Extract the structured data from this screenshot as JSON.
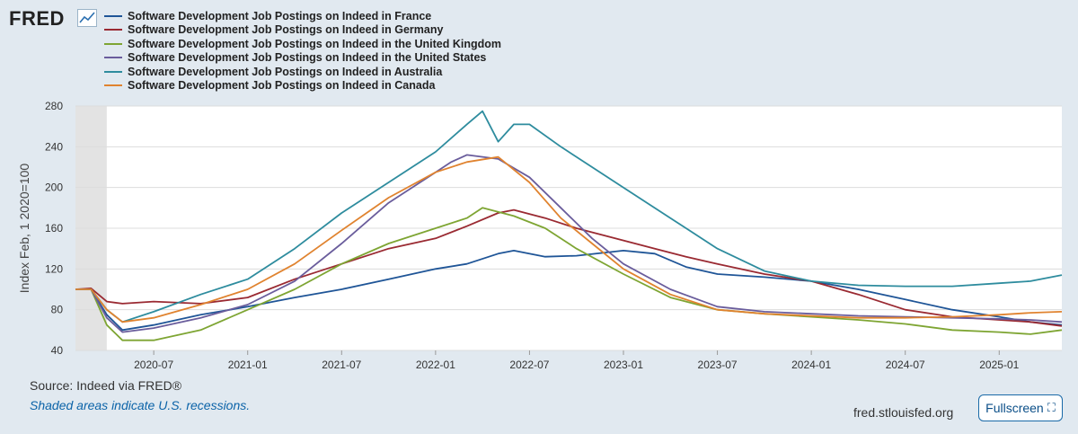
{
  "brand": {
    "logo_text": "FRED"
  },
  "footer": {
    "source": "Source: Indeed via FRED®",
    "note": "Shaded areas indicate U.S. recessions.",
    "site": "fred.stlouisfed.org",
    "fullscreen_label": "Fullscreen",
    "fullscreen_icon": "expand-icon"
  },
  "chart_data": {
    "type": "line",
    "title": "",
    "xlabel": "",
    "ylabel": "Index Feb, 1 2020=100",
    "ylim": [
      40,
      280
    ],
    "yticks": [
      40,
      80,
      120,
      160,
      200,
      240,
      280
    ],
    "xlim": [
      "2020-02",
      "2025-05"
    ],
    "xticks": [
      "2020-07",
      "2021-01",
      "2021-07",
      "2022-01",
      "2022-07",
      "2023-01",
      "2023-07",
      "2024-01",
      "2024-07",
      "2025-01"
    ],
    "grid": true,
    "legend_position": "top",
    "recession_shading": {
      "start": "2020-02",
      "end": "2020-04"
    },
    "series": [
      {
        "name": "Software Development Job Postings on Indeed in France",
        "color": "#1f5597",
        "points": [
          [
            "2020-02",
            100
          ],
          [
            "2020-03",
            100
          ],
          [
            "2020-04",
            75
          ],
          [
            "2020-05",
            60
          ],
          [
            "2020-07",
            65
          ],
          [
            "2020-10",
            75
          ],
          [
            "2021-01",
            83
          ],
          [
            "2021-04",
            92
          ],
          [
            "2021-07",
            100
          ],
          [
            "2021-10",
            110
          ],
          [
            "2022-01",
            120
          ],
          [
            "2022-03",
            125
          ],
          [
            "2022-05",
            135
          ],
          [
            "2022-06",
            138
          ],
          [
            "2022-08",
            132
          ],
          [
            "2022-10",
            133
          ],
          [
            "2023-01",
            138
          ],
          [
            "2023-03",
            135
          ],
          [
            "2023-05",
            122
          ],
          [
            "2023-07",
            115
          ],
          [
            "2023-10",
            112
          ],
          [
            "2024-01",
            108
          ],
          [
            "2024-04",
            100
          ],
          [
            "2024-07",
            90
          ],
          [
            "2024-10",
            80
          ],
          [
            "2025-01",
            73
          ],
          [
            "2025-03",
            68
          ],
          [
            "2025-05",
            65
          ]
        ]
      },
      {
        "name": "Software Development Job Postings on Indeed in Germany",
        "color": "#9a2a32",
        "points": [
          [
            "2020-02",
            100
          ],
          [
            "2020-03",
            101
          ],
          [
            "2020-04",
            88
          ],
          [
            "2020-05",
            86
          ],
          [
            "2020-07",
            88
          ],
          [
            "2020-10",
            86
          ],
          [
            "2021-01",
            92
          ],
          [
            "2021-04",
            110
          ],
          [
            "2021-07",
            125
          ],
          [
            "2021-10",
            140
          ],
          [
            "2022-01",
            150
          ],
          [
            "2022-03",
            162
          ],
          [
            "2022-05",
            175
          ],
          [
            "2022-06",
            178
          ],
          [
            "2022-08",
            170
          ],
          [
            "2022-10",
            160
          ],
          [
            "2023-01",
            148
          ],
          [
            "2023-03",
            140
          ],
          [
            "2023-05",
            132
          ],
          [
            "2023-07",
            125
          ],
          [
            "2023-10",
            115
          ],
          [
            "2024-01",
            108
          ],
          [
            "2024-04",
            95
          ],
          [
            "2024-07",
            80
          ],
          [
            "2024-10",
            73
          ],
          [
            "2025-01",
            70
          ],
          [
            "2025-03",
            68
          ],
          [
            "2025-05",
            64
          ]
        ]
      },
      {
        "name": "Software Development Job Postings on Indeed in the United Kingdom",
        "color": "#7ea533",
        "points": [
          [
            "2020-02",
            100
          ],
          [
            "2020-03",
            100
          ],
          [
            "2020-04",
            65
          ],
          [
            "2020-05",
            50
          ],
          [
            "2020-07",
            50
          ],
          [
            "2020-10",
            60
          ],
          [
            "2021-01",
            80
          ],
          [
            "2021-04",
            100
          ],
          [
            "2021-07",
            125
          ],
          [
            "2021-10",
            145
          ],
          [
            "2022-01",
            160
          ],
          [
            "2022-03",
            170
          ],
          [
            "2022-04",
            180
          ],
          [
            "2022-06",
            172
          ],
          [
            "2022-08",
            160
          ],
          [
            "2022-10",
            140
          ],
          [
            "2023-01",
            115
          ],
          [
            "2023-04",
            92
          ],
          [
            "2023-07",
            80
          ],
          [
            "2023-10",
            76
          ],
          [
            "2024-01",
            73
          ],
          [
            "2024-04",
            70
          ],
          [
            "2024-07",
            66
          ],
          [
            "2024-10",
            60
          ],
          [
            "2025-01",
            58
          ],
          [
            "2025-03",
            56
          ],
          [
            "2025-05",
            60
          ]
        ]
      },
      {
        "name": "Software Development Job Postings on Indeed in the United States",
        "color": "#6a5d9c",
        "points": [
          [
            "2020-02",
            100
          ],
          [
            "2020-03",
            100
          ],
          [
            "2020-04",
            72
          ],
          [
            "2020-05",
            58
          ],
          [
            "2020-07",
            62
          ],
          [
            "2020-10",
            72
          ],
          [
            "2021-01",
            85
          ],
          [
            "2021-04",
            108
          ],
          [
            "2021-07",
            145
          ],
          [
            "2021-10",
            185
          ],
          [
            "2022-01",
            215
          ],
          [
            "2022-02",
            225
          ],
          [
            "2022-03",
            232
          ],
          [
            "2022-05",
            228
          ],
          [
            "2022-07",
            210
          ],
          [
            "2022-09",
            180
          ],
          [
            "2022-11",
            150
          ],
          [
            "2023-01",
            125
          ],
          [
            "2023-04",
            100
          ],
          [
            "2023-07",
            83
          ],
          [
            "2023-10",
            78
          ],
          [
            "2024-01",
            76
          ],
          [
            "2024-04",
            74
          ],
          [
            "2024-07",
            73
          ],
          [
            "2024-10",
            72
          ],
          [
            "2025-01",
            71
          ],
          [
            "2025-03",
            70
          ],
          [
            "2025-05",
            68
          ]
        ]
      },
      {
        "name": "Software Development Job Postings on Indeed in Australia",
        "color": "#2e8c9e",
        "points": [
          [
            "2020-02",
            100
          ],
          [
            "2020-03",
            100
          ],
          [
            "2020-04",
            80
          ],
          [
            "2020-05",
            68
          ],
          [
            "2020-07",
            78
          ],
          [
            "2020-10",
            95
          ],
          [
            "2021-01",
            110
          ],
          [
            "2021-04",
            140
          ],
          [
            "2021-07",
            175
          ],
          [
            "2021-10",
            205
          ],
          [
            "2022-01",
            235
          ],
          [
            "2022-03",
            262
          ],
          [
            "2022-04",
            275
          ],
          [
            "2022-05",
            245
          ],
          [
            "2022-06",
            262
          ],
          [
            "2022-07",
            262
          ],
          [
            "2022-09",
            240
          ],
          [
            "2022-11",
            220
          ],
          [
            "2023-01",
            200
          ],
          [
            "2023-04",
            170
          ],
          [
            "2023-07",
            140
          ],
          [
            "2023-10",
            118
          ],
          [
            "2024-01",
            108
          ],
          [
            "2024-04",
            104
          ],
          [
            "2024-07",
            103
          ],
          [
            "2024-10",
            103
          ],
          [
            "2025-01",
            106
          ],
          [
            "2025-03",
            108
          ],
          [
            "2025-05",
            114
          ]
        ]
      },
      {
        "name": "Software Development Job Postings on Indeed in Canada",
        "color": "#e0832f",
        "points": [
          [
            "2020-02",
            100
          ],
          [
            "2020-03",
            100
          ],
          [
            "2020-04",
            80
          ],
          [
            "2020-05",
            68
          ],
          [
            "2020-07",
            72
          ],
          [
            "2020-10",
            85
          ],
          [
            "2021-01",
            100
          ],
          [
            "2021-04",
            125
          ],
          [
            "2021-07",
            158
          ],
          [
            "2021-10",
            190
          ],
          [
            "2022-01",
            215
          ],
          [
            "2022-03",
            225
          ],
          [
            "2022-05",
            230
          ],
          [
            "2022-07",
            205
          ],
          [
            "2022-09",
            170
          ],
          [
            "2022-11",
            145
          ],
          [
            "2023-01",
            120
          ],
          [
            "2023-04",
            95
          ],
          [
            "2023-07",
            80
          ],
          [
            "2023-10",
            76
          ],
          [
            "2024-01",
            74
          ],
          [
            "2024-04",
            72
          ],
          [
            "2024-07",
            72
          ],
          [
            "2024-10",
            73
          ],
          [
            "2025-01",
            75
          ],
          [
            "2025-03",
            77
          ],
          [
            "2025-05",
            78
          ]
        ]
      }
    ]
  }
}
